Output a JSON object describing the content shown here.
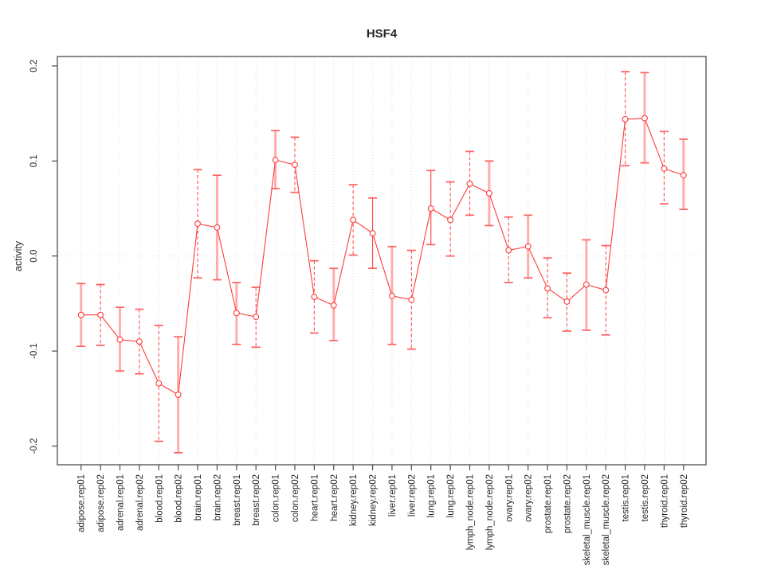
{
  "chart_data": {
    "type": "line",
    "title": "HSF4",
    "xlabel": "",
    "ylabel": "activity",
    "legend": "none",
    "grid": "vertical-dotted-per-category-plus-dotted-zero-line",
    "ylim": [
      -0.223,
      0.21
    ],
    "yticks": [
      -0.2,
      -0.1,
      0.0,
      0.1,
      0.2
    ],
    "ytick_labels": [
      "-0.2",
      "-0.1",
      "0.0",
      "0.1",
      "0.2"
    ],
    "marker": "open-circle",
    "categories": [
      "adipose.rep01",
      "adipose.rep02",
      "adrenal.rep01",
      "adrenal.rep02",
      "blood.rep01",
      "blood.rep02",
      "brain.rep01",
      "brain.rep02",
      "breast.rep01",
      "breast.rep02",
      "colon.rep01",
      "colon.rep02",
      "heart.rep01",
      "heart.rep02",
      "kidney.rep01",
      "kidney.rep02",
      "liver.rep01",
      "liver.rep02",
      "lung.rep01",
      "lung.rep02",
      "lymph_node.rep01",
      "lymph_node.rep02",
      "ovary.rep01",
      "ovary.rep02",
      "prostate.rep01",
      "prostate.rep02",
      "skeletal_muscle.rep01",
      "skeletal_muscle.rep02",
      "testis.rep01",
      "testis.rep02",
      "thyroid.rep01",
      "thyroid.rep02"
    ],
    "series": [
      {
        "name": "activity",
        "values": [
          -0.062,
          -0.062,
          -0.088,
          -0.09,
          -0.134,
          -0.146,
          0.034,
          0.03,
          -0.06,
          -0.064,
          0.101,
          0.096,
          -0.043,
          -0.052,
          0.038,
          0.024,
          -0.042,
          -0.046,
          0.05,
          0.038,
          0.076,
          0.066,
          0.006,
          0.01,
          -0.034,
          -0.048,
          -0.03,
          -0.036,
          0.144,
          0.145,
          0.092,
          0.085
        ],
        "error_high": [
          -0.029,
          -0.03,
          -0.054,
          -0.056,
          -0.073,
          -0.085,
          0.091,
          0.085,
          -0.028,
          -0.033,
          0.132,
          0.125,
          -0.005,
          -0.013,
          0.075,
          0.061,
          0.01,
          0.006,
          0.09,
          0.078,
          0.11,
          0.1,
          0.041,
          0.043,
          -0.002,
          -0.018,
          0.017,
          0.011,
          0.194,
          0.193,
          0.131,
          0.123
        ],
        "error_low": [
          -0.095,
          -0.094,
          -0.121,
          -0.124,
          -0.195,
          -0.207,
          -0.023,
          -0.025,
          -0.093,
          -0.096,
          0.071,
          0.067,
          -0.081,
          -0.089,
          0.001,
          -0.013,
          -0.093,
          -0.098,
          0.012,
          0.0,
          0.043,
          0.032,
          -0.028,
          -0.023,
          -0.065,
          -0.079,
          -0.078,
          -0.083,
          0.095,
          0.098,
          0.055,
          0.049
        ],
        "bar_styles": [
          "pink",
          "dashed",
          "pink",
          "dashed",
          "dashed",
          "pink",
          "dashed",
          "pink",
          "pink",
          "dashed",
          "pink",
          "dashed",
          "dashed",
          "pink",
          "dashed",
          "red",
          "pink",
          "dashed",
          "red",
          "dashed",
          "dashed",
          "pink",
          "dashed",
          "pink",
          "dashed",
          "dashed",
          "pink",
          "dashed",
          "dashed",
          "pink",
          "dashed",
          "pink"
        ]
      }
    ],
    "colors": {
      "line": "#ff3b3b",
      "point_stroke": "#ff3b3b",
      "point_fill": "#ffffff",
      "errorbar_pink": "#ffadad",
      "errorbar_red": "#ff4d4d",
      "cap": "#ff5e5e",
      "gridline": "#d9d9d9",
      "frame": "#4d4d4d",
      "text": "#262626"
    }
  }
}
